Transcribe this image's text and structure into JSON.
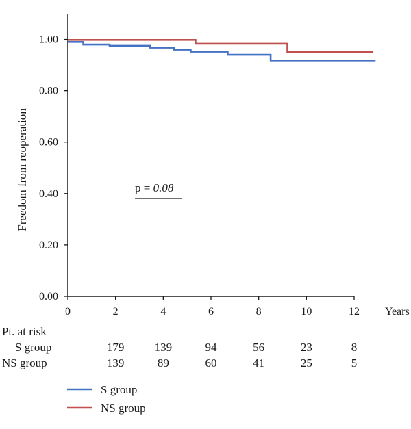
{
  "chart_data": {
    "type": "line",
    "step": true,
    "ylabel": "Freedom from reoperation",
    "x_unit_label": "Years",
    "xlim": [
      0,
      12
    ],
    "ylim": [
      0,
      1.1
    ],
    "x_ticks": [
      0,
      2,
      4,
      6,
      8,
      10,
      12
    ],
    "x_tick_labels": [
      "0",
      "2",
      "4",
      "6",
      "8",
      "10",
      "12"
    ],
    "y_ticks": [
      0,
      0.2,
      0.4,
      0.6,
      0.8,
      1.0
    ],
    "y_tick_labels": [
      "0.00",
      "0.20",
      "0.40",
      "0.60",
      "0.80",
      "1.00"
    ],
    "grid": false,
    "annotation": {
      "prefix": "p = ",
      "value": "0.08"
    },
    "series": [
      {
        "name": "S group",
        "color": "#4472c4",
        "points": [
          [
            0,
            0.99
          ],
          [
            0.65,
            0.98
          ],
          [
            1.75,
            0.975
          ],
          [
            3.45,
            0.968
          ],
          [
            4.45,
            0.96
          ],
          [
            5.15,
            0.952
          ],
          [
            6.7,
            0.94
          ],
          [
            8.5,
            0.918
          ],
          [
            12.9,
            0.918
          ]
        ]
      },
      {
        "name": "NS group",
        "color": "#c0504d",
        "points": [
          [
            0,
            0.998
          ],
          [
            5.35,
            0.983
          ],
          [
            9.2,
            0.95
          ],
          [
            12.8,
            0.95
          ]
        ]
      }
    ],
    "at_risk": {
      "title": "Pt. at risk",
      "time_points": [
        2,
        4,
        6,
        8,
        10,
        12
      ],
      "rows": [
        {
          "label": "S group",
          "values": [
            "179",
            "139",
            "94",
            "56",
            "23",
            "8"
          ]
        },
        {
          "label": "NS group",
          "values": [
            "139",
            "89",
            "60",
            "41",
            "25",
            "5"
          ]
        }
      ]
    },
    "legend": {
      "position": "bottom-left",
      "entries": [
        {
          "label": "S group",
          "color": "#4472c4"
        },
        {
          "label": "NS group",
          "color": "#c0504d"
        }
      ]
    }
  }
}
